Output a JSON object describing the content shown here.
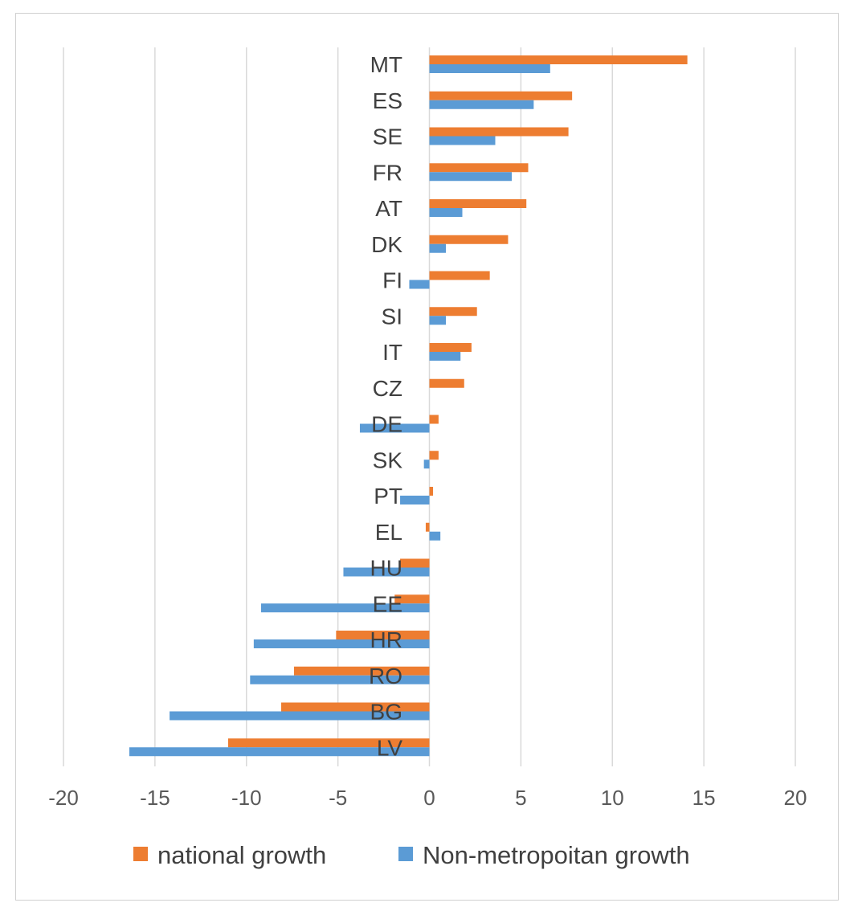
{
  "chart_data": {
    "type": "bar",
    "orientation": "horizontal",
    "title": "",
    "xlabel": "",
    "ylabel": "",
    "xlim": [
      -20,
      20
    ],
    "xticks": [
      -20,
      -15,
      -10,
      -5,
      0,
      5,
      10,
      15,
      20
    ],
    "xtick_labels": [
      "-20",
      "-15",
      "-10",
      "-5",
      "0",
      "5",
      "10",
      "15",
      "20"
    ],
    "grid": true,
    "legend_position": "bottom",
    "categories": [
      "MT",
      "ES",
      "SE",
      "FR",
      "AT",
      "DK",
      "FI",
      "SI",
      "IT",
      "CZ",
      "DE",
      "SK",
      "PT",
      "EL",
      "HU",
      "EE",
      "HR",
      "RO",
      "BG",
      "LV"
    ],
    "series": [
      {
        "name": "national growth",
        "color": "#ED7D31",
        "values": [
          14.1,
          7.8,
          7.6,
          5.4,
          5.3,
          4.3,
          3.3,
          2.6,
          2.3,
          1.9,
          0.5,
          0.5,
          0.2,
          -0.2,
          -1.6,
          -1.9,
          -5.1,
          -7.4,
          -8.1,
          -11.0
        ]
      },
      {
        "name": "Non-metropoitan growth",
        "color": "#5B9BD5",
        "values": [
          6.6,
          5.7,
          3.6,
          4.5,
          1.8,
          0.9,
          -1.1,
          0.9,
          1.7,
          0.0,
          -3.8,
          -0.3,
          -1.6,
          0.6,
          -4.7,
          -9.2,
          -9.6,
          -9.8,
          -14.2,
          -16.4
        ]
      }
    ]
  }
}
